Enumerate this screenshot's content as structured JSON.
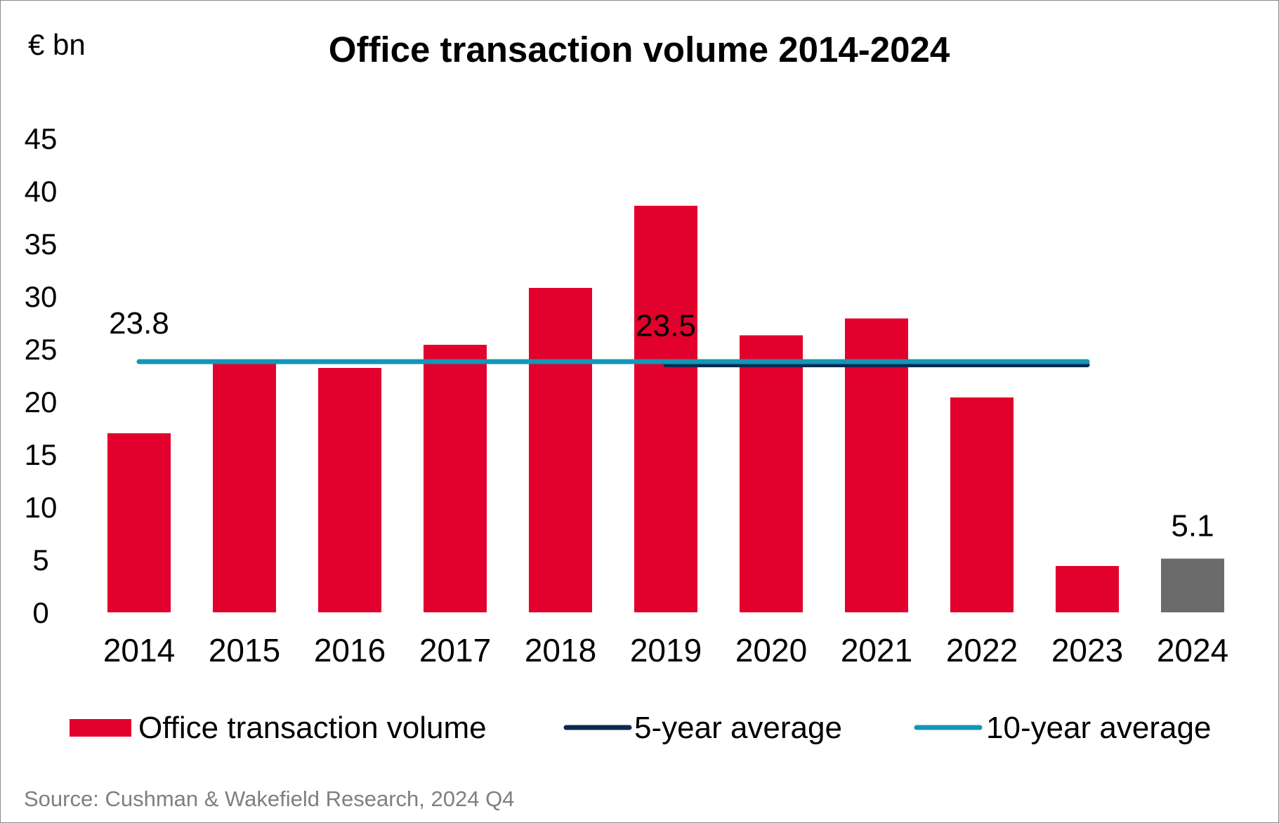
{
  "chart_data": {
    "type": "bar",
    "title": "Office transaction volume 2014-2024",
    "unit_label": "€ bn",
    "categories": [
      "2014",
      "2015",
      "2016",
      "2017",
      "2018",
      "2019",
      "2020",
      "2021",
      "2022",
      "2023",
      "2024"
    ],
    "series": [
      {
        "name": "Office transaction volume",
        "values": [
          17.0,
          23.7,
          23.2,
          25.4,
          30.8,
          38.6,
          26.3,
          27.9,
          20.4,
          4.4,
          5.1
        ],
        "color": "#e2002d",
        "highlight_color": "#6b6b6b",
        "highlight_index": 10
      },
      {
        "name": "5-year average",
        "value": 23.5,
        "from": "2019",
        "to": "2023",
        "color": "#0b2a4f"
      },
      {
        "name": "10-year average",
        "value": 23.8,
        "from": "2014",
        "to": "2023",
        "color": "#1496b6"
      }
    ],
    "data_labels": [
      {
        "text": "23.8",
        "target": "10-year average"
      },
      {
        "text": "23.5",
        "target": "5-year average"
      },
      {
        "text": "5.1",
        "target": "2024"
      }
    ],
    "yticks": [
      "0",
      "5",
      "10",
      "15",
      "20",
      "25",
      "30",
      "35",
      "40",
      "45"
    ],
    "ylim": [
      0,
      45
    ],
    "grid": false,
    "legend_position": "bottom",
    "source": "Source: Cushman & Wakefield Research, 2024 Q4"
  }
}
